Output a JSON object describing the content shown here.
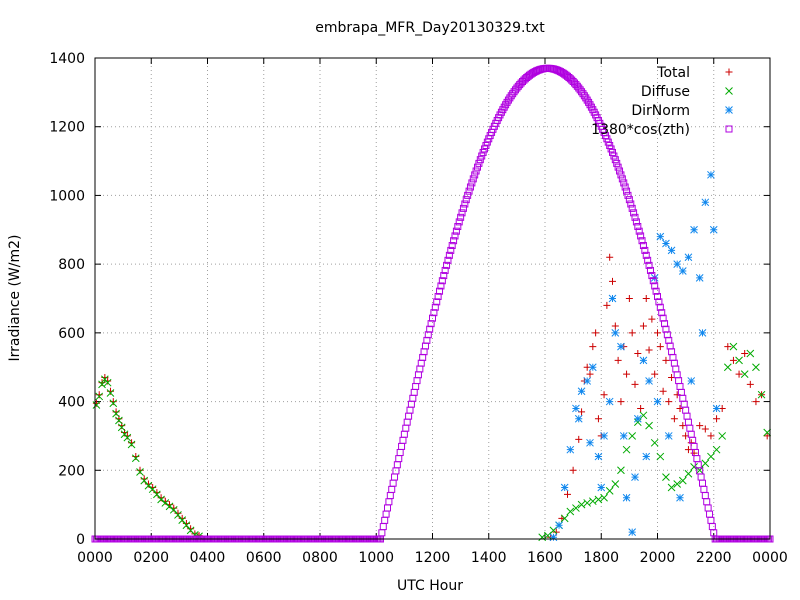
{
  "chart_data": {
    "type": "scatter",
    "title": "embrapa_MFR_Day20130329.txt",
    "xlabel": "UTC Hour",
    "ylabel": "Irradiance (W/m2)",
    "xlim": [
      0,
      24
    ],
    "ylim": [
      0,
      1400
    ],
    "grid": true,
    "legend_position": "top-right",
    "x_ticks": [
      {
        "value": 0,
        "label": "0000"
      },
      {
        "value": 2,
        "label": "0200"
      },
      {
        "value": 4,
        "label": "0400"
      },
      {
        "value": 6,
        "label": "0600"
      },
      {
        "value": 8,
        "label": "0800"
      },
      {
        "value": 10,
        "label": "1000"
      },
      {
        "value": 12,
        "label": "1200"
      },
      {
        "value": 14,
        "label": "1400"
      },
      {
        "value": 16,
        "label": "1600"
      },
      {
        "value": 18,
        "label": "1800"
      },
      {
        "value": 20,
        "label": "2000"
      },
      {
        "value": 22,
        "label": "2200"
      },
      {
        "value": 24,
        "label": "0000"
      }
    ],
    "y_ticks": [
      0,
      200,
      400,
      600,
      800,
      1000,
      1200,
      1400
    ],
    "series": [
      {
        "name": "Total",
        "marker": "plus",
        "color": "#cc0000",
        "points": [
          [
            0.05,
            395
          ],
          [
            0.15,
            420
          ],
          [
            0.25,
            455
          ],
          [
            0.35,
            470
          ],
          [
            0.45,
            460
          ],
          [
            0.55,
            430
          ],
          [
            0.65,
            400
          ],
          [
            0.75,
            370
          ],
          [
            0.85,
            350
          ],
          [
            0.95,
            330
          ],
          [
            1.05,
            310
          ],
          [
            1.15,
            300
          ],
          [
            1.3,
            280
          ],
          [
            1.45,
            240
          ],
          [
            1.6,
            200
          ],
          [
            1.75,
            175
          ],
          [
            1.9,
            160
          ],
          [
            2.05,
            150
          ],
          [
            2.2,
            135
          ],
          [
            2.35,
            120
          ],
          [
            2.5,
            110
          ],
          [
            2.65,
            100
          ],
          [
            2.8,
            90
          ],
          [
            2.95,
            75
          ],
          [
            3.1,
            60
          ],
          [
            3.25,
            45
          ],
          [
            3.4,
            30
          ],
          [
            3.55,
            15
          ],
          [
            3.7,
            10
          ],
          [
            16.2,
            5
          ],
          [
            16.4,
            20
          ],
          [
            16.6,
            60
          ],
          [
            16.8,
            130
          ],
          [
            17.0,
            200
          ],
          [
            17.2,
            290
          ],
          [
            17.3,
            370
          ],
          [
            17.4,
            460
          ],
          [
            17.5,
            500
          ],
          [
            17.6,
            480
          ],
          [
            17.7,
            560
          ],
          [
            17.8,
            600
          ],
          [
            17.9,
            350
          ],
          [
            18.0,
            300
          ],
          [
            18.1,
            420
          ],
          [
            18.2,
            680
          ],
          [
            18.3,
            820
          ],
          [
            18.4,
            750
          ],
          [
            18.5,
            620
          ],
          [
            18.6,
            520
          ],
          [
            18.7,
            400
          ],
          [
            18.8,
            560
          ],
          [
            18.9,
            480
          ],
          [
            19.0,
            700
          ],
          [
            19.1,
            600
          ],
          [
            19.2,
            450
          ],
          [
            19.3,
            540
          ],
          [
            19.4,
            380
          ],
          [
            19.5,
            620
          ],
          [
            19.6,
            700
          ],
          [
            19.7,
            550
          ],
          [
            19.8,
            640
          ],
          [
            19.9,
            480
          ],
          [
            20.0,
            600
          ],
          [
            20.1,
            560
          ],
          [
            20.2,
            430
          ],
          [
            20.3,
            520
          ],
          [
            20.4,
            400
          ],
          [
            20.5,
            470
          ],
          [
            20.6,
            350
          ],
          [
            20.7,
            420
          ],
          [
            20.8,
            380
          ],
          [
            20.9,
            330
          ],
          [
            21.0,
            300
          ],
          [
            21.1,
            260
          ],
          [
            21.2,
            280
          ],
          [
            21.3,
            250
          ],
          [
            21.5,
            330
          ],
          [
            21.7,
            320
          ],
          [
            21.9,
            300
          ],
          [
            22.1,
            350
          ],
          [
            22.3,
            380
          ],
          [
            22.5,
            560
          ],
          [
            22.7,
            520
          ],
          [
            22.9,
            480
          ],
          [
            23.1,
            540
          ],
          [
            23.3,
            450
          ],
          [
            23.5,
            400
          ],
          [
            23.7,
            420
          ],
          [
            23.9,
            300
          ]
        ]
      },
      {
        "name": "Diffuse",
        "marker": "cross",
        "color": "#00aa00",
        "points": [
          [
            0.05,
            390
          ],
          [
            0.15,
            415
          ],
          [
            0.25,
            450
          ],
          [
            0.35,
            465
          ],
          [
            0.45,
            455
          ],
          [
            0.55,
            425
          ],
          [
            0.65,
            395
          ],
          [
            0.75,
            365
          ],
          [
            0.85,
            345
          ],
          [
            0.95,
            325
          ],
          [
            1.05,
            305
          ],
          [
            1.15,
            295
          ],
          [
            1.3,
            275
          ],
          [
            1.45,
            235
          ],
          [
            1.6,
            195
          ],
          [
            1.75,
            170
          ],
          [
            1.9,
            155
          ],
          [
            2.05,
            145
          ],
          [
            2.2,
            130
          ],
          [
            2.35,
            115
          ],
          [
            2.5,
            105
          ],
          [
            2.65,
            95
          ],
          [
            2.8,
            85
          ],
          [
            2.95,
            70
          ],
          [
            3.1,
            55
          ],
          [
            3.25,
            40
          ],
          [
            3.4,
            25
          ],
          [
            3.55,
            12
          ],
          [
            3.7,
            8
          ],
          [
            15.9,
            5
          ],
          [
            16.1,
            10
          ],
          [
            16.3,
            25
          ],
          [
            16.5,
            40
          ],
          [
            16.7,
            60
          ],
          [
            16.9,
            80
          ],
          [
            17.1,
            90
          ],
          [
            17.3,
            100
          ],
          [
            17.5,
            105
          ],
          [
            17.7,
            110
          ],
          [
            17.9,
            115
          ],
          [
            18.1,
            120
          ],
          [
            18.3,
            140
          ],
          [
            18.5,
            160
          ],
          [
            18.7,
            200
          ],
          [
            18.9,
            260
          ],
          [
            19.1,
            300
          ],
          [
            19.3,
            340
          ],
          [
            19.5,
            360
          ],
          [
            19.7,
            330
          ],
          [
            19.9,
            280
          ],
          [
            20.1,
            240
          ],
          [
            20.3,
            180
          ],
          [
            20.5,
            150
          ],
          [
            20.7,
            160
          ],
          [
            20.9,
            170
          ],
          [
            21.1,
            190
          ],
          [
            21.3,
            210
          ],
          [
            21.5,
            200
          ],
          [
            21.7,
            220
          ],
          [
            21.9,
            240
          ],
          [
            22.1,
            260
          ],
          [
            22.3,
            300
          ],
          [
            22.5,
            500
          ],
          [
            22.7,
            560
          ],
          [
            22.9,
            520
          ],
          [
            23.1,
            480
          ],
          [
            23.3,
            540
          ],
          [
            23.5,
            500
          ],
          [
            23.7,
            420
          ],
          [
            23.9,
            310
          ]
        ]
      },
      {
        "name": "DirNorm",
        "marker": "star",
        "color": "#1188ee",
        "points": [
          [
            16.3,
            5
          ],
          [
            16.5,
            40
          ],
          [
            16.7,
            150
          ],
          [
            16.9,
            260
          ],
          [
            17.1,
            380
          ],
          [
            17.3,
            430
          ],
          [
            17.5,
            460
          ],
          [
            17.7,
            500
          ],
          [
            17.9,
            240
          ],
          [
            18.1,
            300
          ],
          [
            18.3,
            400
          ],
          [
            18.5,
            600
          ],
          [
            18.7,
            560
          ],
          [
            18.9,
            120
          ],
          [
            19.1,
            20
          ],
          [
            19.3,
            350
          ],
          [
            19.5,
            520
          ],
          [
            19.7,
            460
          ],
          [
            19.9,
            760
          ],
          [
            20.1,
            880
          ],
          [
            20.3,
            860
          ],
          [
            20.5,
            840
          ],
          [
            20.7,
            800
          ],
          [
            20.9,
            780
          ],
          [
            21.1,
            820
          ],
          [
            21.3,
            900
          ],
          [
            21.5,
            760
          ],
          [
            21.7,
            980
          ],
          [
            21.9,
            1060
          ],
          [
            22.0,
            900
          ],
          [
            17.2,
            350
          ],
          [
            17.6,
            280
          ],
          [
            18.0,
            150
          ],
          [
            18.4,
            700
          ],
          [
            18.8,
            300
          ],
          [
            19.2,
            180
          ],
          [
            19.6,
            240
          ],
          [
            20.0,
            400
          ],
          [
            20.4,
            300
          ],
          [
            20.8,
            120
          ],
          [
            21.2,
            460
          ],
          [
            21.6,
            600
          ],
          [
            22.1,
            380
          ]
        ]
      },
      {
        "name": "1380*cos(zth)",
        "marker": "square",
        "color": "#b000e0",
        "curve": {
          "zero_start": 10.15,
          "zero_end": 22.05,
          "peak_x": 16.1,
          "peak_y": 1370,
          "step": 0.05
        }
      }
    ]
  }
}
